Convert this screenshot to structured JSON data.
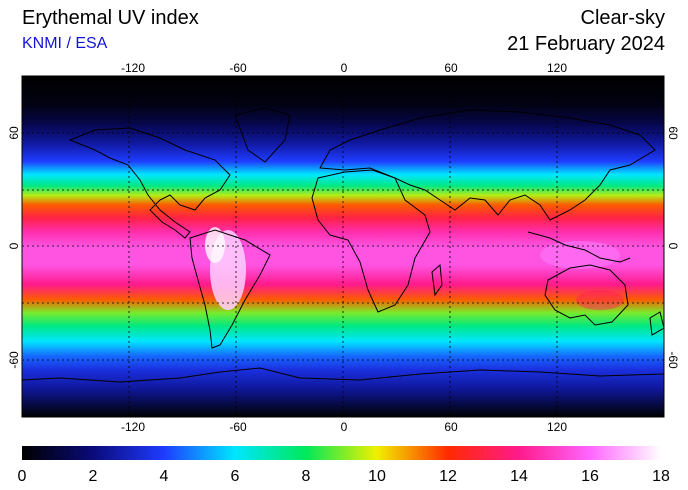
{
  "header": {
    "title": "Erythemal UV index",
    "source": "KNMI / ESA",
    "condition": "Clear-sky",
    "date": "21 February 2024"
  },
  "map": {
    "lon_ticks": [
      "-120",
      "-60",
      "0",
      "60",
      "120"
    ],
    "lat_ticks_left": [
      "60",
      "0",
      "-60"
    ],
    "lat_ticks_right": [
      "60",
      "0",
      "-60"
    ],
    "extent": {
      "lon": [
        -180,
        180
      ],
      "lat": [
        -90,
        90
      ]
    },
    "grid": true
  },
  "colorbar": {
    "ticks": [
      "0",
      "2",
      "4",
      "6",
      "8",
      "10",
      "12",
      "14",
      "16",
      "18"
    ],
    "range": [
      0,
      18
    ],
    "stops": [
      {
        "v": 0,
        "c": "#000000"
      },
      {
        "v": 2,
        "c": "#0a0a7a"
      },
      {
        "v": 4,
        "c": "#1f3cff"
      },
      {
        "v": 6,
        "c": "#00e6ff"
      },
      {
        "v": 8,
        "c": "#00e85a"
      },
      {
        "v": 10,
        "c": "#f0f000"
      },
      {
        "v": 12,
        "c": "#ff2a00"
      },
      {
        "v": 14,
        "c": "#ff1a8c"
      },
      {
        "v": 16,
        "c": "#ff66ff"
      },
      {
        "v": 18,
        "c": "#ffffff"
      }
    ]
  },
  "chart_data": {
    "type": "heatmap",
    "title": "Erythemal UV index",
    "x_label": "",
    "y_label": "",
    "x_ticks": [
      -120,
      -60,
      0,
      60,
      120
    ],
    "y_ticks": [
      60,
      0,
      -60
    ],
    "zonal_profile": [
      {
        "lat": 90,
        "uv": 0
      },
      {
        "lat": 75,
        "uv": 0.3
      },
      {
        "lat": 65,
        "uv": 1.2
      },
      {
        "lat": 55,
        "uv": 2.5
      },
      {
        "lat": 45,
        "uv": 4
      },
      {
        "lat": 38,
        "uv": 6
      },
      {
        "lat": 32,
        "uv": 7.5
      },
      {
        "lat": 27,
        "uv": 9.5
      },
      {
        "lat": 22,
        "uv": 11.5
      },
      {
        "lat": 15,
        "uv": 13
      },
      {
        "lat": 8,
        "uv": 14.5
      },
      {
        "lat": 0,
        "uv": 15.5
      },
      {
        "lat": -10,
        "uv": 15.5
      },
      {
        "lat": -20,
        "uv": 14
      },
      {
        "lat": -28,
        "uv": 11.5
      },
      {
        "lat": -35,
        "uv": 9
      },
      {
        "lat": -42,
        "uv": 7.5
      },
      {
        "lat": -50,
        "uv": 6
      },
      {
        "lat": -58,
        "uv": 4.5
      },
      {
        "lat": -65,
        "uv": 3.5
      },
      {
        "lat": -75,
        "uv": 2.5
      },
      {
        "lat": -90,
        "uv": 0
      }
    ]
  }
}
